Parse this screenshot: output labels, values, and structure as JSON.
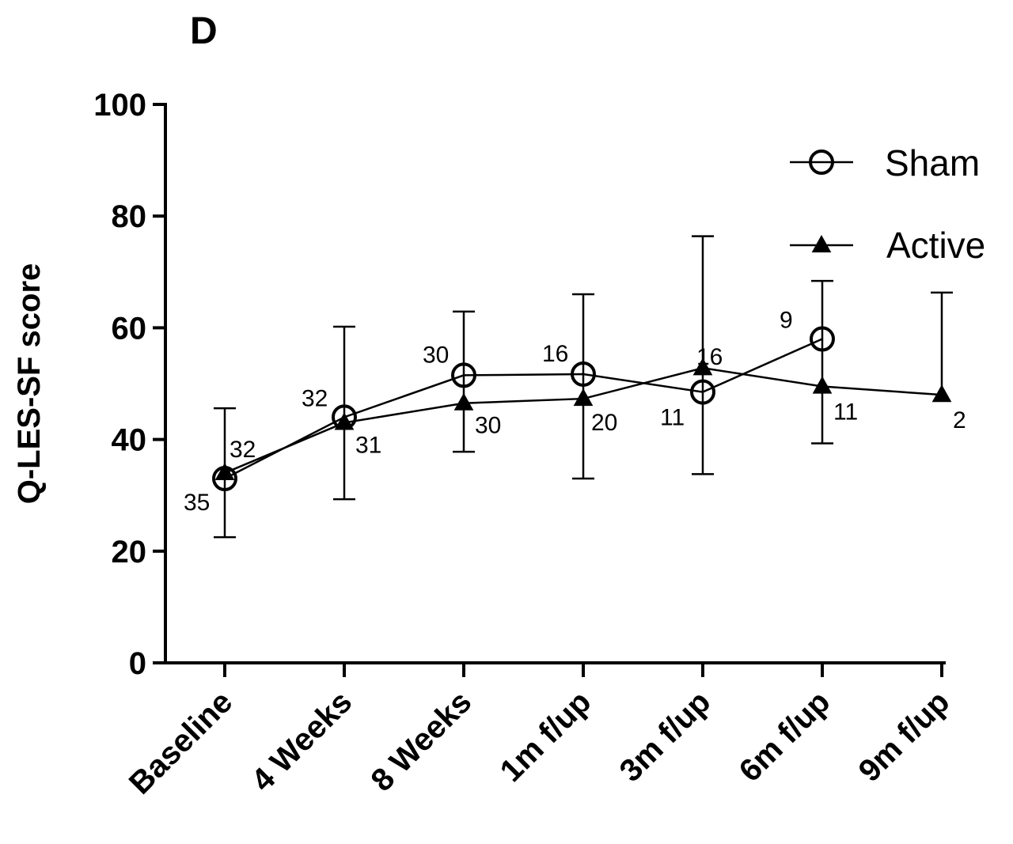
{
  "panel_label": "D",
  "chart_data": {
    "type": "line",
    "ylabel": "Q-LES-SF score",
    "ylim": [
      0,
      100
    ],
    "yticks": [
      0,
      20,
      40,
      60,
      80,
      100
    ],
    "categories": [
      "Baseline",
      "4 Weeks",
      "8 Weeks",
      "1m f/up",
      "3m f/up",
      "6m f/up",
      "9m f/up"
    ],
    "legend_position": "top-right",
    "series": [
      {
        "name": "Sham",
        "marker": "open-circle",
        "values": [
          33,
          44,
          51.5,
          51.7,
          48.5,
          58,
          null
        ],
        "n": [
          "35",
          "32",
          "30",
          "16",
          "11",
          "9",
          null
        ],
        "err_low": [
          22.5,
          29.3,
          37.8,
          33,
          33.8,
          39.3,
          null
        ],
        "err_high": [
          45.6,
          60.2,
          62.9,
          66,
          76.4,
          68.4,
          null
        ]
      },
      {
        "name": "Active",
        "marker": "filled-triangle",
        "values": [
          34,
          43,
          46.5,
          47.3,
          52.8,
          49.5,
          48
        ],
        "n": [
          "32",
          "31",
          "30",
          "20",
          "16",
          "11",
          "2"
        ],
        "err_low": [
          null,
          null,
          null,
          null,
          null,
          null,
          null
        ],
        "err_high": [
          null,
          null,
          null,
          null,
          null,
          null,
          66.3
        ]
      }
    ]
  }
}
